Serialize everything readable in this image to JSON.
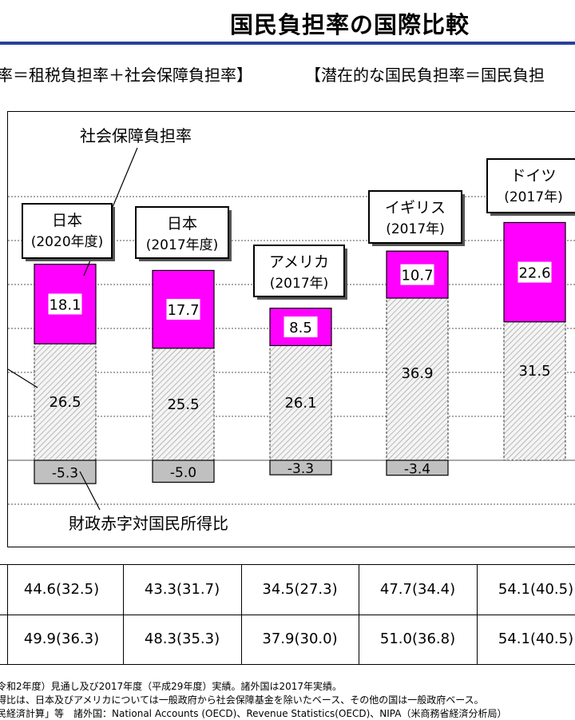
{
  "title": "国民負担率の国際比較",
  "formula_left": "率＝租税負担率＋社会保障負担率】",
  "formula_right": "【潜在的な国民負担率＝国民負担",
  "chart_data": {
    "type": "bar",
    "stacked": true,
    "categories": [
      {
        "name": "日本",
        "period": "(2020年度)"
      },
      {
        "name": "日本",
        "period": "(2017年度)"
      },
      {
        "name": "アメリカ",
        "period": "(2017年)"
      },
      {
        "name": "イギリス",
        "period": "(2017年)"
      },
      {
        "name": "ドイツ",
        "period": "(2017年)"
      }
    ],
    "series": [
      {
        "key": "tax",
        "values": [
          26.5,
          25.5,
          26.1,
          36.9,
          31.5
        ]
      },
      {
        "key": "social",
        "name": "社会保障負担率",
        "values": [
          18.1,
          17.7,
          8.5,
          10.7,
          22.6
        ],
        "color": "#ff00ff"
      },
      {
        "key": "deficit",
        "name": "財政赤字対国民所得比",
        "values": [
          -5.3,
          -5.0,
          -3.3,
          -3.4,
          null
        ],
        "color": "#c0c0c0"
      }
    ],
    "value_labels": {
      "tax": [
        "26.5",
        "25.5",
        "26.1",
        "36.9",
        "31.5"
      ],
      "social": [
        "18.1",
        "17.7",
        "8.5",
        "10.7",
        "22.6"
      ],
      "deficit": [
        "-5.3",
        "-5.0",
        "-3.3",
        "-3.4",
        ""
      ]
    },
    "ylim": [
      -10,
      60
    ],
    "gridlines": [
      -10,
      0,
      10,
      20,
      30,
      40,
      50,
      60
    ],
    "annotations": [
      "社会保障負担率",
      "財政赤字対国民所得比"
    ]
  },
  "table": {
    "rows": [
      [
        "44.6(32.5)",
        "43.3(31.7)",
        "34.5(27.3)",
        "47.7(34.4)",
        "54.1(40.5)"
      ],
      [
        "49.9(36.3)",
        "48.3(35.3)",
        "37.9(30.0)",
        "51.0(36.8)",
        "54.1(40.5)"
      ]
    ]
  },
  "notes": [
    "令和2年度）見通し及び2017年度（平成29年度）実績。諸外国は2017年実績。",
    "得比は、日本及びアメリカについては一般政府から社会保障基金を除いたベース、その他の国は一般政府ベース。",
    "民経済計算」等　諸外国：National Accounts (OECD)、Revenue Statistics(OECD)、NIPA（米商務省経済分析局）"
  ]
}
